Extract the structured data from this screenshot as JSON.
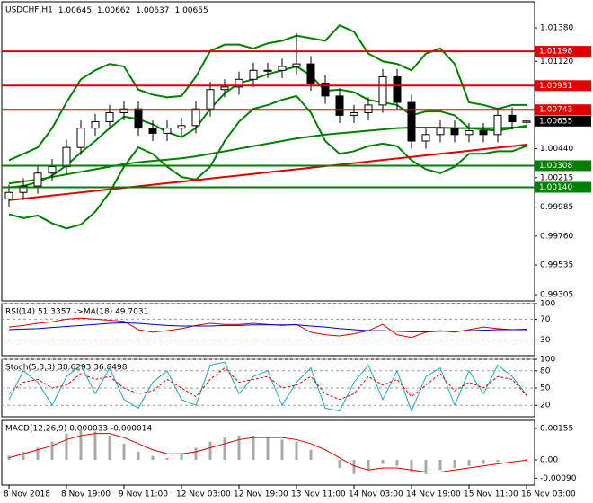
{
  "chart_data": [
    {
      "type": "candlestick",
      "title": "USDCHF,H1",
      "header_values": [
        1.00645,
        1.00662,
        1.00637,
        1.00655
      ],
      "categories": [
        "8 Nov 2018",
        null,
        null,
        null,
        "8 Nov 19:00",
        null,
        null,
        null,
        "9 Nov 11:00",
        null,
        null,
        null,
        "12 Nov 03:00",
        null,
        null,
        null,
        "12 Nov 19:00",
        null,
        null,
        null,
        "13 Nov 11:00",
        null,
        null,
        null,
        "14 Nov 03:00",
        null,
        null,
        null,
        "14 Nov 19:00",
        null,
        null,
        null,
        "15 Nov 11:00",
        null,
        null,
        null,
        "16 Nov 03:00"
      ],
      "open": [
        1.0005,
        1.001,
        1.0015,
        1.0025,
        1.003,
        1.0045,
        1.006,
        1.0065,
        1.0072,
        1.0075,
        1.006,
        1.0056,
        1.006,
        1.0062,
        1.0075,
        1.009,
        1.0092,
        1.0098,
        1.0105,
        1.0105,
        1.0108,
        1.011,
        1.0095,
        1.0085,
        1.007,
        1.0072,
        1.0078,
        1.01,
        1.008,
        1.005,
        1.0055,
        1.006,
        1.0055,
        1.0058,
        1.0055,
        1.007,
        1.00645
      ],
      "high": [
        1.0016,
        1.0021,
        1.0031,
        1.0036,
        1.0051,
        1.0066,
        1.0071,
        1.0078,
        1.0081,
        1.0081,
        1.0066,
        1.0066,
        1.0068,
        1.0081,
        1.0096,
        1.0098,
        1.0104,
        1.0111,
        1.0111,
        1.0114,
        1.0134,
        1.0116,
        1.0101,
        1.0091,
        1.0078,
        1.0084,
        1.0106,
        1.0106,
        1.0086,
        1.0061,
        1.0066,
        1.0066,
        1.0064,
        1.0064,
        1.0076,
        1.0076,
        1.00662
      ],
      "low": [
        0.9999,
        1.0004,
        1.0009,
        1.0019,
        1.0024,
        1.0039,
        1.0054,
        1.0059,
        1.0066,
        1.0054,
        1.005,
        1.005,
        1.0054,
        1.0056,
        1.0069,
        1.0084,
        1.0086,
        1.0092,
        1.0099,
        1.0099,
        1.0102,
        1.0089,
        1.0079,
        1.0064,
        1.0064,
        1.0066,
        1.0072,
        1.0074,
        1.0044,
        1.0044,
        1.0049,
        1.0049,
        1.0049,
        1.0049,
        1.0049,
        1.0059,
        1.00637
      ],
      "close": [
        1.001,
        1.0015,
        1.0025,
        1.003,
        1.0045,
        1.006,
        1.0065,
        1.0072,
        1.0075,
        1.006,
        1.0056,
        1.006,
        1.0062,
        1.0075,
        1.009,
        1.0092,
        1.0098,
        1.0105,
        1.0105,
        1.0108,
        1.011,
        1.0095,
        1.0085,
        1.007,
        1.0072,
        1.0078,
        1.01,
        1.008,
        1.005,
        1.0055,
        1.006,
        1.0055,
        1.0058,
        1.0055,
        1.007,
        1.0065,
        1.00655
      ],
      "up_color": "#ffffff",
      "down_color": "#000000",
      "wick_color": "#000000",
      "ylim": [
        0.99256,
        1.01583
      ],
      "yticks": [
        {
          "value": 1.0138,
          "label": "1.01380"
        },
        {
          "value": 1.0112,
          "label": "1.01120"
        },
        {
          "value": 1.0044,
          "label": "1.00440"
        },
        1.00215,
        0.99985,
        {
          "value": 0.9976,
          "label": "0.99760"
        },
        0.99535,
        0.99305
      ],
      "overlays": [
        {
          "color": "#008000",
          "values": [
            1.0035,
            1.004,
            1.0045,
            1.006,
            1.008,
            1.0098,
            1.0105,
            1.011,
            1.0108,
            1.009,
            1.0086,
            1.0084,
            1.0085,
            1.01,
            1.012,
            1.0125,
            1.0125,
            1.0122,
            1.0126,
            1.0128,
            1.0132,
            1.013,
            1.0128,
            1.014,
            1.0135,
            1.0118,
            1.0112,
            1.011,
            1.0105,
            1.0118,
            1.0122,
            1.011,
            1.008,
            1.0078,
            1.0075,
            1.0078,
            1.0078
          ]
        },
        {
          "color": "#008000",
          "values": [
            1.0014,
            1.0015,
            1.0018,
            1.0023,
            1.0031,
            1.0041,
            1.005,
            1.006,
            1.0069,
            1.0067,
            1.0063,
            1.0057,
            1.0053,
            1.006,
            1.0075,
            1.0087,
            1.0095,
            1.0098,
            1.0102,
            1.0105,
            1.0108,
            1.0101,
            1.0089,
            1.009,
            1.0088,
            1.0082,
            1.008,
            1.0078,
            1.007,
            1.0073,
            1.0073,
            1.007,
            1.006,
            1.0059,
            1.0058,
            1.006,
            1.0062
          ]
        },
        {
          "color": "#008000",
          "values": [
            0.9993,
            0.999,
            0.9992,
            0.9986,
            0.9982,
            0.9985,
            0.9995,
            1.001,
            1.003,
            1.0045,
            1.004,
            1.003,
            1.0022,
            1.002,
            1.003,
            1.005,
            1.0065,
            1.0075,
            1.0078,
            1.0082,
            1.0085,
            1.0072,
            1.005,
            1.004,
            1.0042,
            1.0046,
            1.0048,
            1.0046,
            1.0035,
            1.0028,
            1.0025,
            1.003,
            1.004,
            1.004,
            1.0042,
            1.0042,
            1.0046
          ]
        },
        {
          "color": "#008000",
          "values": [
            1.0017,
            1.00185,
            1.002,
            1.0022,
            1.0024,
            1.0026,
            1.0028,
            1.003,
            1.0032,
            1.00335,
            1.00345,
            1.00355,
            1.00365,
            1.0038,
            1.004,
            1.0042,
            1.0044,
            1.0046,
            1.0048,
            1.005,
            1.0052,
            1.00535,
            1.0055,
            1.0056,
            1.0057,
            1.0058,
            1.0059,
            1.006,
            1.00605,
            1.00605,
            1.00605,
            1.006,
            1.006,
            1.006,
            1.006,
            1.00605,
            1.00605
          ]
        },
        {
          "color": "#e00000",
          "values": [
            1.0004,
            1.00052,
            1.00064,
            1.00076,
            1.00088,
            1.001,
            1.00112,
            1.00124,
            1.00136,
            1.00148,
            1.0016,
            1.00172,
            1.00184,
            1.00196,
            1.00208,
            1.0022,
            1.00232,
            1.00244,
            1.00256,
            1.00268,
            1.0028,
            1.00292,
            1.00304,
            1.00316,
            1.00328,
            1.0034,
            1.00352,
            1.00364,
            1.00376,
            1.00388,
            1.004,
            1.00412,
            1.00424,
            1.00436,
            1.00448,
            1.0046,
            1.00472
          ]
        },
        {
          "color": "#e00000",
          "values": [
            null,
            null,
            null,
            null,
            null,
            null,
            null,
            null,
            null,
            null,
            null,
            null,
            null,
            null,
            null,
            null,
            null,
            null,
            null,
            null,
            1.013,
            null,
            null,
            null,
            null,
            null,
            null,
            null,
            null,
            null,
            null,
            null,
            null,
            null,
            null,
            null,
            1.00744
          ]
        }
      ],
      "levels": [
        {
          "value": 1.01198,
          "color": "#e00000"
        },
        {
          "value": 1.00931,
          "color": "#e00000"
        },
        {
          "value": 1.00743,
          "color": "#e00000"
        },
        {
          "value": 1.00308,
          "color": "#008000"
        },
        {
          "value": 1.0014,
          "label": "1.00140",
          "color": "#008000"
        }
      ]
    },
    {
      "type": "line",
      "title": "RSI(14) 51.3357  ->MA(18) 49.7031",
      "ylim": [
        0,
        100
      ],
      "yticks": [
        30,
        70,
        100
      ],
      "grid": true,
      "series": [
        {
          "color": "#e00000",
          "values": [
            55,
            58,
            62,
            65,
            70,
            72,
            70,
            68,
            66,
            50,
            45,
            48,
            52,
            58,
            62,
            60,
            60,
            62,
            60,
            58,
            60,
            45,
            40,
            38,
            42,
            48,
            60,
            40,
            35,
            45,
            48,
            45,
            50,
            55,
            52,
            50,
            51
          ]
        },
        {
          "color": "#0000c0",
          "values": [
            50,
            51,
            52,
            54,
            56,
            58,
            60,
            62,
            63,
            62,
            60,
            58,
            57,
            57,
            57,
            58,
            58,
            59,
            59,
            59,
            59,
            57,
            55,
            52,
            50,
            48,
            48,
            47,
            46,
            46,
            47,
            47,
            48,
            49,
            50,
            50,
            50
          ]
        }
      ]
    },
    {
      "type": "line",
      "title": "Stoch(5,3,3) 38.6293 36.8498",
      "ylim": [
        0,
        100
      ],
      "yticks": [
        20,
        50,
        80,
        100
      ],
      "grid": true,
      "series": [
        {
          "color": "#20a8b8",
          "values": [
            30,
            80,
            60,
            20,
            70,
            90,
            40,
            85,
            30,
            15,
            60,
            80,
            30,
            20,
            90,
            95,
            40,
            70,
            80,
            20,
            60,
            85,
            15,
            10,
            60,
            90,
            30,
            80,
            10,
            70,
            85,
            20,
            80,
            40,
            90,
            70,
            38.6293
          ]
        },
        {
          "color": "#e00000",
          "dash": true,
          "values": [
            40,
            60,
            65,
            50,
            55,
            75,
            65,
            70,
            50,
            40,
            45,
            65,
            50,
            35,
            65,
            85,
            60,
            65,
            70,
            50,
            55,
            70,
            40,
            30,
            40,
            70,
            55,
            65,
            35,
            55,
            75,
            45,
            60,
            50,
            70,
            65,
            36.8498
          ]
        }
      ]
    },
    {
      "type": "bar",
      "title": "MACD(12,26,9) 0.000033 -0.000014",
      "ylim": [
        -0.00124,
        0.00195
      ],
      "yticks": [
        0.00155,
        {
          "value": 0,
          "label": "0.00"
        },
        {
          "value": -0.0009,
          "label": "-0.00090"
        }
      ],
      "color": "#a8a8a8",
      "values": [
        0.0002,
        0.0004,
        0.0006,
        0.0009,
        0.0013,
        0.0015,
        0.0014,
        0.0012,
        0.0008,
        0.0004,
        0.0002,
        0.0001,
        0.0003,
        0.0006,
        0.0009,
        0.0011,
        0.0012,
        0.0012,
        0.0011,
        0.001,
        0.0009,
        0.0005,
        0.0,
        -0.0004,
        -0.0007,
        -0.0005,
        -0.0002,
        -0.0003,
        -0.0006,
        -0.0007,
        -0.0005,
        -0.0004,
        -0.0003,
        -0.0002,
        -0.0001,
        0.0,
        3.3e-05
      ],
      "series": [
        {
          "color": "#e00000",
          "values": [
            0.0001,
            0.0003,
            0.0005,
            0.0007,
            0.001,
            0.0012,
            0.0013,
            0.0013,
            0.0011,
            0.0008,
            0.0005,
            0.0003,
            0.0003,
            0.0004,
            0.0006,
            0.0008,
            0.001,
            0.0011,
            0.0011,
            0.0011,
            0.001,
            0.0008,
            0.0005,
            0.0001,
            -0.0003,
            -0.0005,
            -0.0004,
            -0.0004,
            -0.0005,
            -0.0006,
            -0.0006,
            -0.0005,
            -0.0004,
            -0.0003,
            -0.0002,
            -0.0001,
            -1.4e-05
          ]
        }
      ]
    }
  ]
}
